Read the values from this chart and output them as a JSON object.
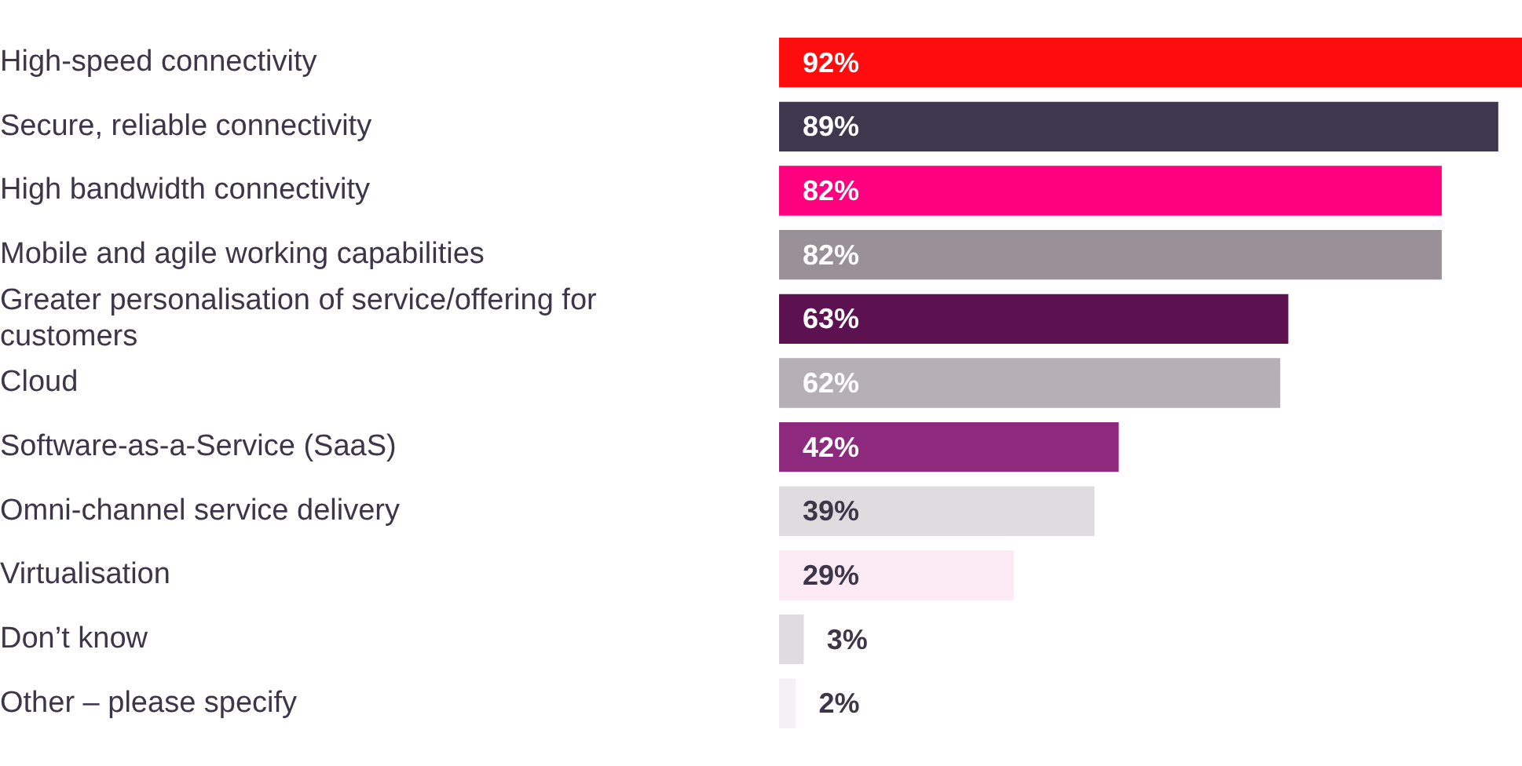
{
  "chart_data": {
    "type": "bar",
    "orientation": "horizontal",
    "categories": [
      "High-speed connectivity",
      "Secure, reliable connectivity",
      "High bandwidth connectivity",
      "Mobile and agile working capabilities",
      "Greater personalisation of service/offering for customers",
      "Cloud",
      "Software-as-a-Service (SaaS)",
      "Omni-channel service delivery",
      "Virtualisation",
      "Don’t know",
      "Other – please specify"
    ],
    "values": [
      92,
      89,
      82,
      82,
      63,
      62,
      42,
      39,
      29,
      3,
      2
    ],
    "value_labels": [
      "92%",
      "89%",
      "82%",
      "82%",
      "63%",
      "62%",
      "42%",
      "39%",
      "29%",
      "3%",
      "2%"
    ],
    "colors": [
      "#ff0c0e",
      "#3f374d",
      "#ff007f",
      "#9a9097",
      "#5c1150",
      "#b6b0b4",
      "#8e2a7d",
      "#dfdcdf",
      "#fbe9f3",
      "#dfdcdf",
      "#f3f1f3"
    ],
    "xlim": [
      0,
      92
    ],
    "tick_labels": "y",
    "grid": false,
    "legend": false
  }
}
